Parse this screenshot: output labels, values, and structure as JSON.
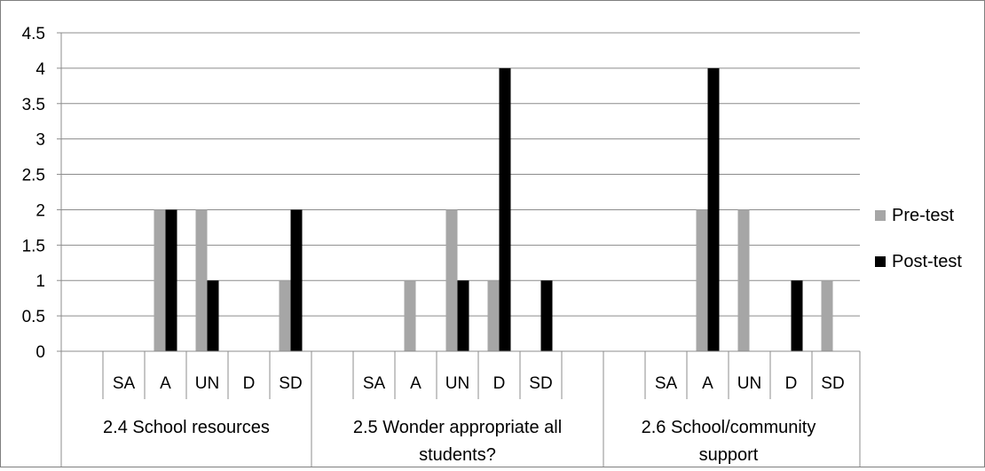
{
  "chart_data": {
    "type": "bar",
    "title": "",
    "xlabel": "",
    "ylabel": "",
    "ylim": [
      0,
      4.5
    ],
    "yticks": [
      "0",
      "0.5",
      "1",
      "1.5",
      "2",
      "2.5",
      "3",
      "3.5",
      "4",
      "4.5"
    ],
    "grid": true,
    "legend_position": "right",
    "groups": [
      {
        "label": "2.4 School resources",
        "slots": [
          "",
          "SA",
          "A",
          "UN",
          "D",
          "SD"
        ]
      },
      {
        "label": "2.5 Wonder appropriate all students?",
        "slots": [
          "",
          "SA",
          "A",
          "UN",
          "D",
          "SD",
          ""
        ]
      },
      {
        "label": "2.6 School/community support",
        "slots": [
          "",
          "SA",
          "A",
          "UN",
          "D",
          "SD"
        ]
      }
    ],
    "series": [
      {
        "name": "Pre-test",
        "color": "#a6a6a6",
        "values": [
          [
            0,
            0,
            2,
            2,
            0,
            1
          ],
          [
            0,
            0,
            1,
            2,
            1,
            0,
            0
          ],
          [
            0,
            0,
            2,
            2,
            0,
            1
          ]
        ]
      },
      {
        "name": "Post-test",
        "color": "#000000",
        "values": [
          [
            0,
            0,
            2,
            1,
            0,
            2
          ],
          [
            0,
            0,
            0,
            1,
            4,
            1,
            0
          ],
          [
            0,
            0,
            4,
            0,
            1,
            0
          ]
        ]
      }
    ]
  }
}
